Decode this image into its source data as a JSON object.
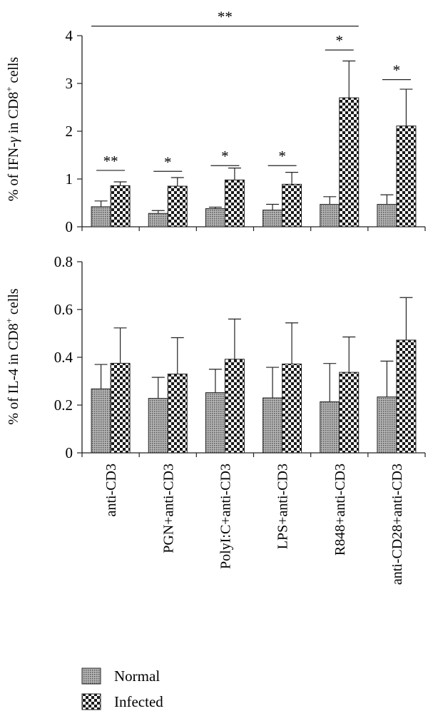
{
  "chart_data": [
    {
      "type": "bar",
      "ylabel_prefix": "% of IFN-",
      "ylabel_gamma": "γ",
      "ylabel_mid": " in CD8",
      "ylabel_sup": "+",
      "ylabel_suffix": " cells",
      "ylim": [
        0,
        4
      ],
      "yticks": [
        "0",
        "1",
        "2",
        "3",
        "4"
      ],
      "categories": [
        "anti-CD3",
        "PGN+anti-CD3",
        "PolyI:C+anti-CD3",
        "LPS+anti-CD3",
        "R848+anti-CD3",
        "anti-CD28+anti-CD3"
      ],
      "series": [
        {
          "name": "Normal",
          "values": [
            0.42,
            0.28,
            0.38,
            0.35,
            0.47,
            0.47
          ],
          "errors": [
            0.12,
            0.06,
            0.03,
            0.12,
            0.16,
            0.2
          ]
        },
        {
          "name": "Infected",
          "values": [
            0.86,
            0.85,
            0.98,
            0.89,
            2.7,
            2.11
          ],
          "errors": [
            0.08,
            0.18,
            0.25,
            0.25,
            0.77,
            0.77
          ]
        }
      ],
      "significance": [
        {
          "category_index": 0,
          "label": "**",
          "y": 1.18
        },
        {
          "category_index": 1,
          "label": "*",
          "y": 1.16
        },
        {
          "category_index": 2,
          "label": "*",
          "y": 1.28
        },
        {
          "category_index": 3,
          "label": "*",
          "y": 1.28
        },
        {
          "category_index": 4,
          "label": "*",
          "y": 3.7
        },
        {
          "category_index": 5,
          "label": "*",
          "y": 3.08
        }
      ],
      "bracket": {
        "from_index": 0,
        "to_index": 4,
        "label": "**",
        "y": 4.2
      }
    },
    {
      "type": "bar",
      "ylabel_prefix": "% of IL-4 in CD8",
      "ylabel_sup": "+",
      "ylabel_suffix": " cells",
      "ylim": [
        0,
        0.8
      ],
      "yticks": [
        "0",
        "0.2",
        "0.4",
        "0.6",
        "0.8"
      ],
      "categories": [
        "anti-CD3",
        "PGN+anti-CD3",
        "PolyI:C+anti-CD3",
        "LPS+anti-CD3",
        "R848+anti-CD3",
        "anti-CD28+anti-CD3"
      ],
      "series": [
        {
          "name": "Normal",
          "values": [
            0.268,
            0.228,
            0.252,
            0.23,
            0.214,
            0.234
          ],
          "errors": [
            0.102,
            0.088,
            0.098,
            0.128,
            0.16,
            0.15
          ]
        },
        {
          "name": "Infected",
          "values": [
            0.375,
            0.33,
            0.392,
            0.372,
            0.337,
            0.472
          ],
          "errors": [
            0.148,
            0.152,
            0.168,
            0.172,
            0.148,
            0.178
          ]
        }
      ]
    }
  ],
  "legend": [
    {
      "label": "Normal"
    },
    {
      "label": "Infected"
    }
  ],
  "colors": {
    "normal_fill": "#9a9a9a",
    "infected_dark": "#1a1a1a",
    "infected_light": "#ffffff",
    "axis": "#222222"
  }
}
